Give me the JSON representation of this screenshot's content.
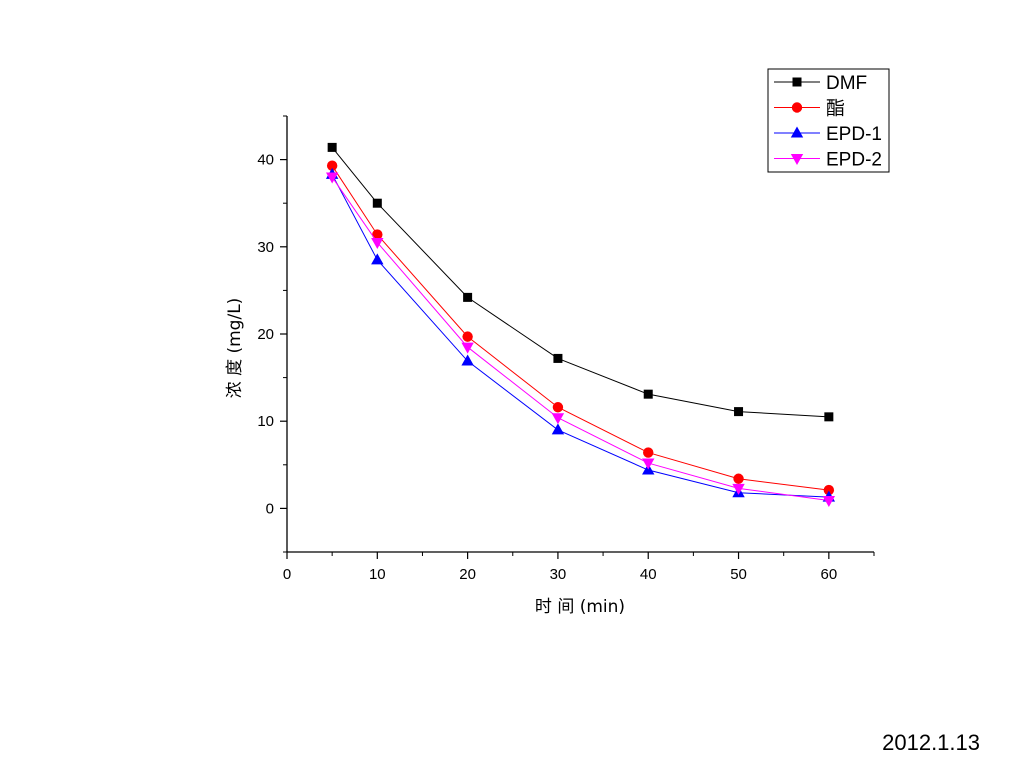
{
  "slide": {
    "date": "2012.1.13"
  },
  "chart_data": {
    "type": "line",
    "title": "",
    "xlabel": "时 间  (min)",
    "ylabel": "浓 度  (mg/L)",
    "xlim": [
      0,
      65
    ],
    "ylim": [
      -5,
      45
    ],
    "xticks": [
      0,
      10,
      20,
      30,
      40,
      50,
      60
    ],
    "yticks": [
      0,
      10,
      20,
      30,
      40
    ],
    "grid": false,
    "legend_position": "top-right",
    "x": [
      5,
      10,
      20,
      30,
      40,
      50,
      60
    ],
    "series": [
      {
        "name": "DMF",
        "values": [
          41.4,
          35.0,
          24.2,
          17.2,
          13.1,
          11.1,
          10.5
        ],
        "color": "#000000",
        "marker": "square"
      },
      {
        "name": "酯",
        "values": [
          39.3,
          31.4,
          19.7,
          11.6,
          6.4,
          3.4,
          2.1
        ],
        "color": "#ff0000",
        "marker": "circle"
      },
      {
        "name": "EPD-1",
        "values": [
          38.3,
          28.5,
          16.9,
          9.0,
          4.4,
          1.8,
          1.3
        ],
        "color": "#0000ff",
        "marker": "triangle-up"
      },
      {
        "name": "EPD-2",
        "values": [
          38.0,
          30.5,
          18.5,
          10.4,
          5.2,
          2.3,
          0.9
        ],
        "color": "#ff00ff",
        "marker": "triangle-down"
      }
    ]
  }
}
